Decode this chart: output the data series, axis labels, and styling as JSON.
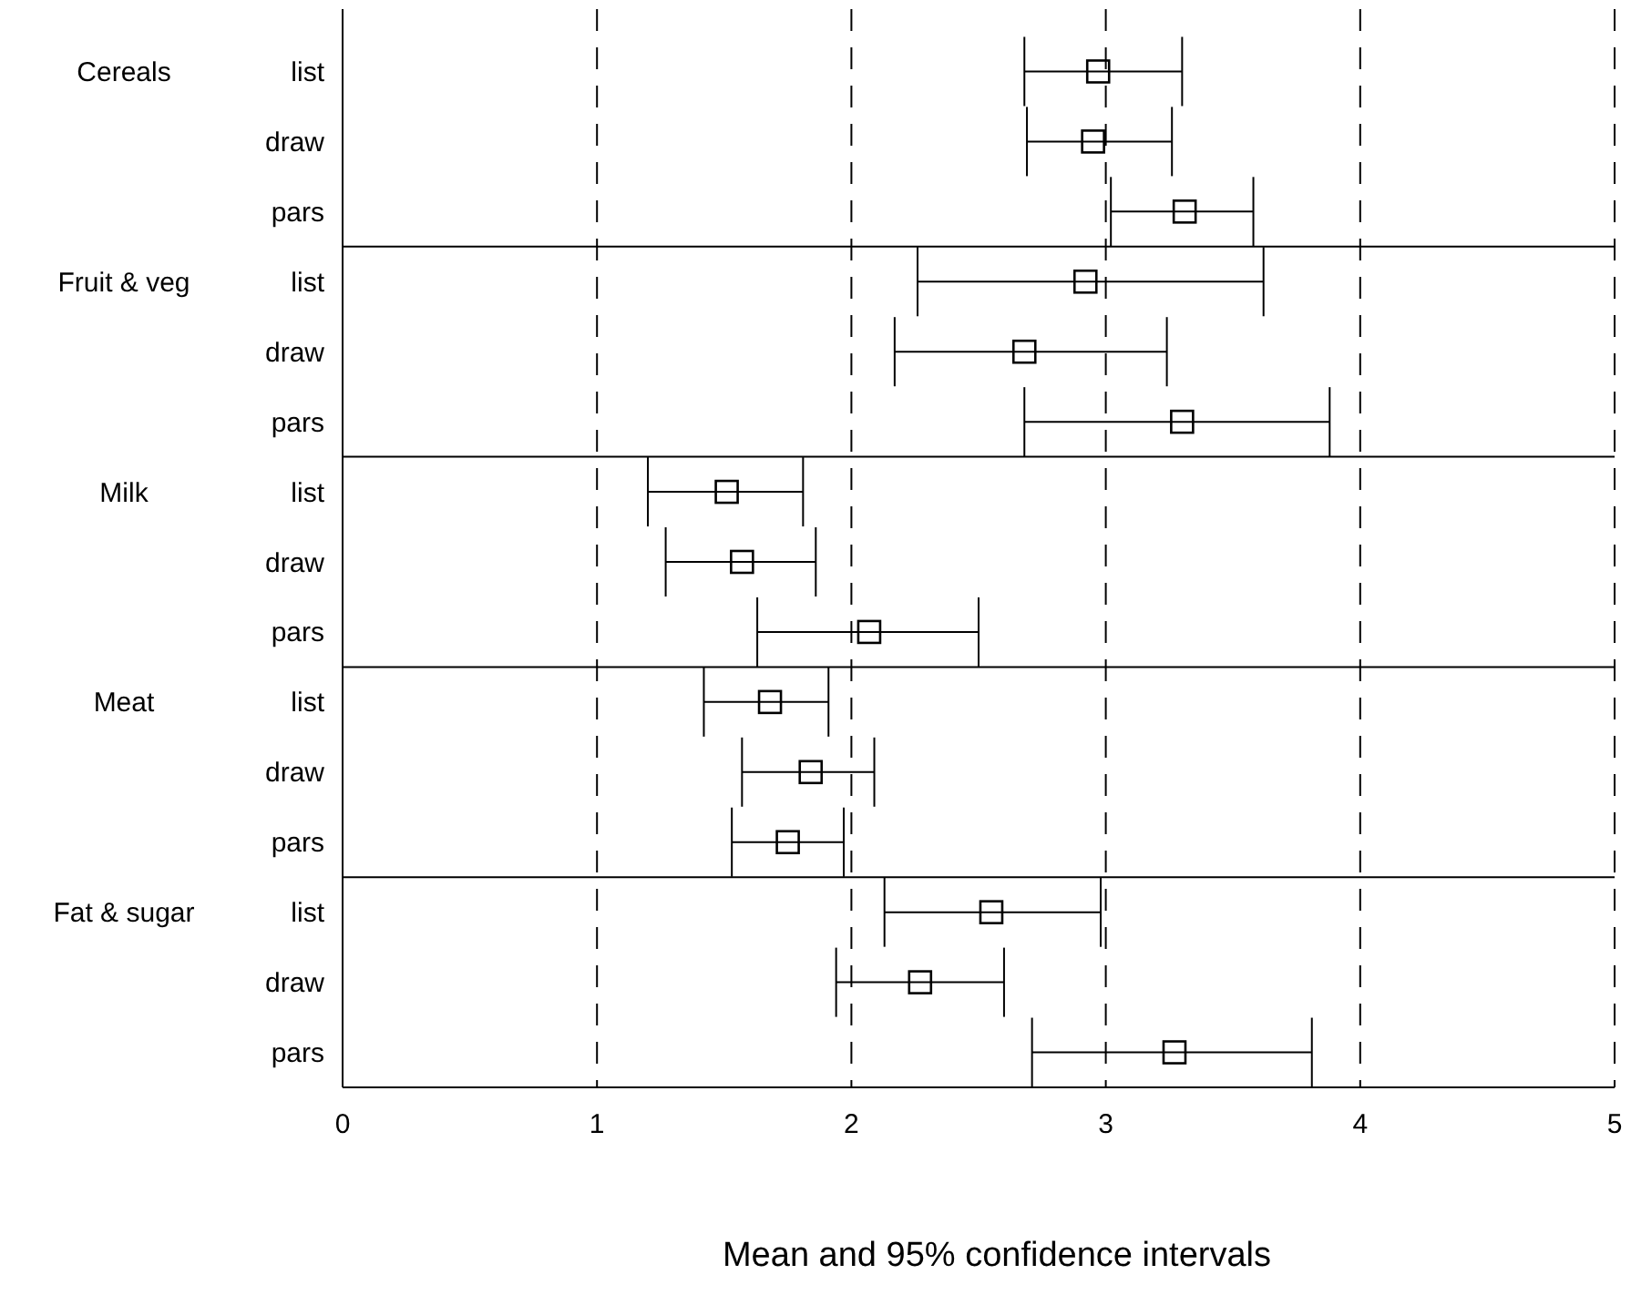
{
  "chart_data": {
    "type": "scatter",
    "orientation": "horizontal",
    "xlabel": "Mean and 95% confidence intervals",
    "categories": [
      "list",
      "draw",
      "pars",
      "list",
      "draw",
      "pars",
      "list",
      "draw",
      "pars",
      "list",
      "draw",
      "pars",
      "list",
      "draw",
      "pars"
    ],
    "annotations": [
      "Cereals",
      "Fruit & veg",
      "Milk",
      "Meat",
      "Fat & sugar"
    ],
    "series": [
      {
        "color": "#000000",
        "values": [
          2.97,
          2.95,
          3.31,
          2.92,
          2.68,
          3.3,
          1.51,
          1.57,
          2.07,
          1.68,
          1.84,
          1.75,
          2.55,
          2.27,
          3.27
        ],
        "errors": [
          [
            2.68,
            3.3
          ],
          [
            2.69,
            3.26
          ],
          [
            3.02,
            3.58
          ],
          [
            2.26,
            3.62
          ],
          [
            2.17,
            3.24
          ],
          [
            2.68,
            3.88
          ],
          [
            1.2,
            1.81
          ],
          [
            1.27,
            1.86
          ],
          [
            1.63,
            2.5
          ],
          [
            1.42,
            1.91
          ],
          [
            1.57,
            2.09
          ],
          [
            1.53,
            1.97
          ],
          [
            2.13,
            2.98
          ],
          [
            1.94,
            2.6
          ],
          [
            2.71,
            3.81
          ]
        ]
      }
    ],
    "xlim": [
      0,
      5
    ],
    "xticks": [
      0,
      1,
      2,
      3,
      4,
      5
    ],
    "grid": "x",
    "marker": "square",
    "line_style": "solid"
  }
}
